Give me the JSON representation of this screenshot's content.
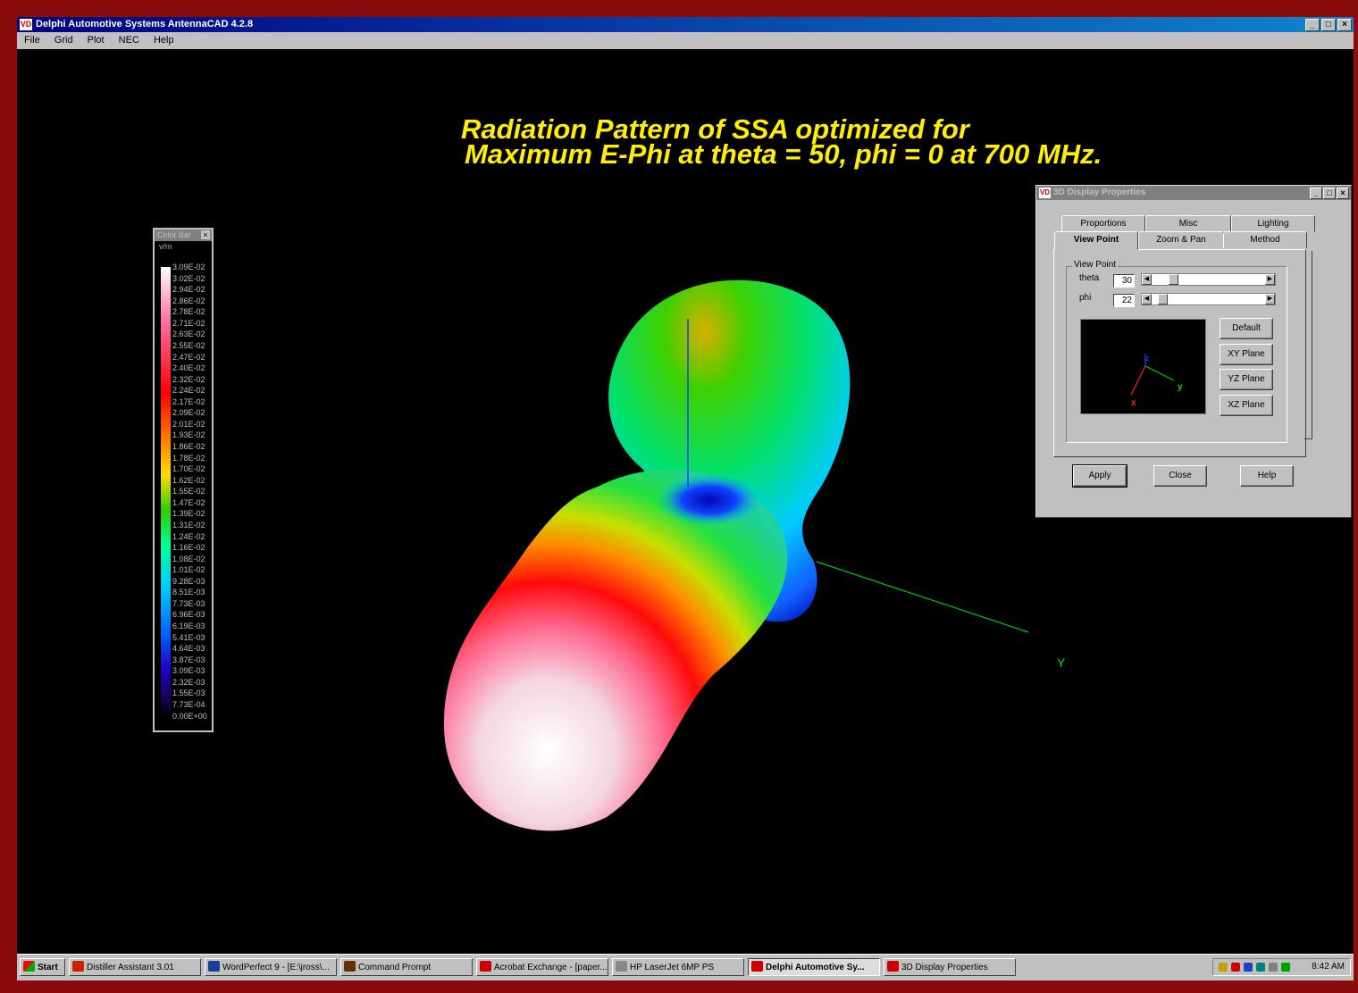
{
  "window": {
    "title": "Delphi Automotive Systems AntennaCAD 4.2.8",
    "controls": [
      "_",
      "□",
      "×"
    ]
  },
  "menu": {
    "items": [
      "File",
      "Grid",
      "Plot",
      "NEC",
      "Help"
    ]
  },
  "plot": {
    "title_line1": "Radiation Pattern of SSA optimized for",
    "title_line2": "Maximum E-Phi at theta = 50, phi = 0 at 700 MHz.",
    "y_axis_label": "Y",
    "colors": {
      "title": "#ffee00",
      "y_axis": "#00dd00",
      "z_axis": "#1a3cff"
    }
  },
  "colorbar": {
    "title": "Color Bar",
    "units": "v/m",
    "values": [
      "3.09E-02",
      "3.02E-02",
      "2.94E-02",
      "2.86E-02",
      "2.78E-02",
      "2.71E-02",
      "2.63E-02",
      "2.55E-02",
      "2.47E-02",
      "2.40E-02",
      "2.32E-02",
      "2.24E-02",
      "2.17E-02",
      "2.09E-02",
      "2.01E-02",
      "1.93E-02",
      "1.86E-02",
      "1.78E-02",
      "1.70E-02",
      "1.62E-02",
      "1.55E-02",
      "1.47E-02",
      "1.39E-02",
      "1.31E-02",
      "1.24E-02",
      "1.16E-02",
      "1.08E-02",
      "1.01E-02",
      "9.28E-03",
      "8.51E-03",
      "7.73E-03",
      "6.96E-03",
      "6.19E-03",
      "5.41E-03",
      "4.64E-03",
      "3.87E-03",
      "3.09E-03",
      "2.32E-03",
      "1.55E-03",
      "7.73E-04",
      "0.00E+00"
    ]
  },
  "dialog": {
    "title": "3D Display Properties",
    "tabs_back": [
      "Proportions",
      "Misc",
      "Lighting"
    ],
    "tabs_front": [
      "View Point",
      "Zoom & Pan",
      "Method"
    ],
    "active_tab": "View Point",
    "group_label": "View Point",
    "theta_label": "theta",
    "theta_value": "30",
    "phi_label": "phi",
    "phi_value": "22",
    "axis_labels": {
      "x": "x",
      "y": "y",
      "z": "z"
    },
    "buttons": {
      "default": "Default",
      "xy": "XY Plane",
      "yz": "YZ Plane",
      "xz": "XZ Plane"
    },
    "footer": {
      "apply": "Apply",
      "close": "Close",
      "help": "Help"
    }
  },
  "taskbar": {
    "start": "Start",
    "items": [
      {
        "label": "Distiller Assistant 3.01",
        "icon_color": "#cc2200"
      },
      {
        "label": "WordPerfect 9 - [E:\\jross\\...",
        "icon_color": "#1a3c9a"
      },
      {
        "label": "Command Prompt",
        "icon_color": "#663300"
      },
      {
        "label": "Acrobat Exchange - [paper...",
        "icon_color": "#cc0000"
      },
      {
        "label": "HP LaserJet 6MP PS",
        "icon_color": "#888888"
      },
      {
        "label": "Delphi Automotive Sy...",
        "icon_color": "#cc0000"
      },
      {
        "label": "3D Display Properties",
        "icon_color": "#cc0000"
      }
    ],
    "active_item": "Delphi Automotive Sy...",
    "clock": "8:42 AM"
  }
}
